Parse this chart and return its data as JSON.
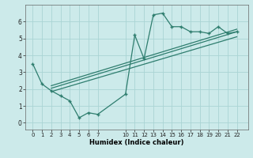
{
  "main_x": [
    0,
    1,
    2,
    3,
    4,
    5,
    6,
    7,
    10,
    11,
    12,
    13,
    14,
    15,
    16,
    17,
    18,
    19,
    20,
    21,
    22
  ],
  "main_y": [
    3.5,
    2.3,
    1.9,
    1.6,
    1.3,
    0.3,
    0.6,
    0.5,
    1.7,
    5.2,
    3.8,
    6.4,
    6.5,
    5.7,
    5.7,
    5.4,
    5.4,
    5.3,
    5.7,
    5.3,
    5.4
  ],
  "line1_x": [
    2,
    22
  ],
  "line1_y": [
    2.05,
    5.4
  ],
  "line2_x": [
    2,
    22
  ],
  "line2_y": [
    2.2,
    5.55
  ],
  "line3_x": [
    2,
    22
  ],
  "line3_y": [
    1.85,
    5.1
  ],
  "line_color": "#2e7d6e",
  "bg_color": "#cceaea",
  "grid_color": "#aad4d4",
  "xlabel": "Humidex (Indice chaleur)",
  "ylim": [
    -0.4,
    7.0
  ],
  "xlim": [
    -0.8,
    23.2
  ],
  "yticks": [
    0,
    1,
    2,
    3,
    4,
    5,
    6
  ],
  "xticks": [
    0,
    1,
    2,
    3,
    4,
    5,
    6,
    7,
    10,
    11,
    12,
    13,
    14,
    15,
    16,
    17,
    18,
    19,
    20,
    21,
    22
  ]
}
